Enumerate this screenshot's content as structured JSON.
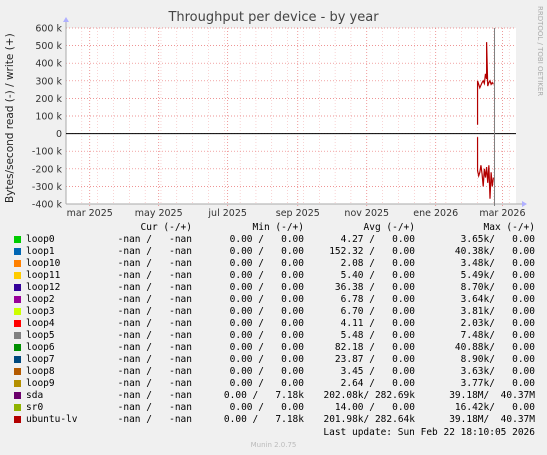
{
  "title": "Throughput per device - by year",
  "ylabel": "Bytes/second read (-) / write (+)",
  "watermark": "RRDTOOL / TOBI OETIKER",
  "footer": "Munin 2.0.75",
  "last_update": "Last update: Sun Feb 22 18:10:05 2026",
  "legend_headers": {
    "cur": "Cur (-/+)",
    "min": "Min (-/+)",
    "avg": "Avg (-/+)",
    "max": "Max (-/+)"
  },
  "legend": [
    {
      "name": "loop0",
      "color": "#00cc00",
      "cur": "-nan /   -nan",
      "min": "0.00 /   0.00",
      "avg": "4.27 /   0.00",
      "max": "3.65k/   0.00"
    },
    {
      "name": "loop1",
      "color": "#0066b3",
      "cur": "-nan /   -nan",
      "min": "0.00 /   0.00",
      "avg": "152.32 /   0.00",
      "max": "40.38k/   0.00"
    },
    {
      "name": "loop10",
      "color": "#ff8000",
      "cur": "-nan /   -nan",
      "min": "0.00 /   0.00",
      "avg": "2.08 /   0.00",
      "max": "3.48k/   0.00"
    },
    {
      "name": "loop11",
      "color": "#ffcc00",
      "cur": "-nan /   -nan",
      "min": "0.00 /   0.00",
      "avg": "5.40 /   0.00",
      "max": "5.49k/   0.00"
    },
    {
      "name": "loop12",
      "color": "#330099",
      "cur": "-nan /   -nan",
      "min": "0.00 /   0.00",
      "avg": "36.38 /   0.00",
      "max": "8.70k/   0.00"
    },
    {
      "name": "loop2",
      "color": "#990099",
      "cur": "-nan /   -nan",
      "min": "0.00 /   0.00",
      "avg": "6.78 /   0.00",
      "max": "3.64k/   0.00"
    },
    {
      "name": "loop3",
      "color": "#ccff00",
      "cur": "-nan /   -nan",
      "min": "0.00 /   0.00",
      "avg": "6.70 /   0.00",
      "max": "3.81k/   0.00"
    },
    {
      "name": "loop4",
      "color": "#ff0000",
      "cur": "-nan /   -nan",
      "min": "0.00 /   0.00",
      "avg": "4.11 /   0.00",
      "max": "2.03k/   0.00"
    },
    {
      "name": "loop5",
      "color": "#808080",
      "cur": "-nan /   -nan",
      "min": "0.00 /   0.00",
      "avg": "5.48 /   0.00",
      "max": "7.48k/   0.00"
    },
    {
      "name": "loop6",
      "color": "#008f00",
      "cur": "-nan /   -nan",
      "min": "0.00 /   0.00",
      "avg": "82.18 /   0.00",
      "max": "40.88k/   0.00"
    },
    {
      "name": "loop7",
      "color": "#00487d",
      "cur": "-nan /   -nan",
      "min": "0.00 /   0.00",
      "avg": "23.87 /   0.00",
      "max": "8.90k/   0.00"
    },
    {
      "name": "loop8",
      "color": "#b35a00",
      "cur": "-nan /   -nan",
      "min": "0.00 /   0.00",
      "avg": "3.45 /   0.00",
      "max": "3.63k/   0.00"
    },
    {
      "name": "loop9",
      "color": "#b38f00",
      "cur": "-nan /   -nan",
      "min": "0.00 /   0.00",
      "avg": "2.64 /   0.00",
      "max": "3.77k/   0.00"
    },
    {
      "name": "sda",
      "color": "#6b006b",
      "cur": "-nan /   -nan",
      "min": "0.00 /   7.18k",
      "avg": "202.08k/ 282.69k",
      "max": "39.18M/  40.37M"
    },
    {
      "name": "sr0",
      "color": "#8fb300",
      "cur": "-nan /   -nan",
      "min": "0.00 /   0.00",
      "avg": "14.00 /   0.00",
      "max": "16.42k/   0.00"
    },
    {
      "name": "ubuntu-lv",
      "color": "#b30000",
      "cur": "-nan /   -nan",
      "min": "0.00 /   7.18k",
      "avg": "201.98k/ 282.64k",
      "max": "39.18M/  40.37M"
    }
  ],
  "chart_data": {
    "type": "line",
    "title": "Throughput per device - by year",
    "ylabel": "Bytes/second read (-) / write (+)",
    "xlabel": "",
    "ylim": [
      -400000,
      600000
    ],
    "yticks": [
      {
        "value": 600000,
        "label": "600 k"
      },
      {
        "value": 500000,
        "label": "500 k"
      },
      {
        "value": 400000,
        "label": "400 k"
      },
      {
        "value": 300000,
        "label": "300 k"
      },
      {
        "value": 200000,
        "label": "200 k"
      },
      {
        "value": 100000,
        "label": "100 k"
      },
      {
        "value": 0,
        "label": "0"
      },
      {
        "value": -100000,
        "label": "-100 k"
      },
      {
        "value": -200000,
        "label": "-200 k"
      },
      {
        "value": -300000,
        "label": "-300 k"
      },
      {
        "value": -400000,
        "label": "-400 k"
      }
    ],
    "xlim": [
      "2025-02-08",
      "2026-03-13"
    ],
    "xticks": [
      {
        "date": "2025-03-01",
        "label": "mar 2025"
      },
      {
        "date": "2025-05-01",
        "label": "may 2025"
      },
      {
        "date": "2025-07-01",
        "label": "jul 2025"
      },
      {
        "date": "2025-09-01",
        "label": "sep 2025"
      },
      {
        "date": "2025-11-01",
        "label": "nov 2025"
      },
      {
        "date": "2026-01-01",
        "label": "ene 2026"
      },
      {
        "date": "2026-03-01",
        "label": "mar 2026"
      }
    ],
    "now_marker": "2026-02-22",
    "grid": true,
    "colors": {
      "grid": "#e87070",
      "zero_line": "#000000",
      "now_line": "#7f7f7f",
      "axis": "#aaaaaa"
    },
    "series": [
      {
        "name": "ubuntu-lv",
        "color": "#b30000",
        "write": [
          [
            "2026-02-07",
            50000
          ],
          [
            "2026-02-07",
            300000
          ],
          [
            "2026-02-08",
            280000
          ],
          [
            "2026-02-09",
            260000
          ],
          [
            "2026-02-10",
            275000
          ],
          [
            "2026-02-11",
            290000
          ],
          [
            "2026-02-12",
            300000
          ],
          [
            "2026-02-13",
            285000
          ],
          [
            "2026-02-14",
            340000
          ],
          [
            "2026-02-15",
            310000
          ],
          [
            "2026-02-15",
            520000
          ],
          [
            "2026-02-16",
            270000
          ],
          [
            "2026-02-17",
            290000
          ],
          [
            "2026-02-18",
            300000
          ],
          [
            "2026-02-19",
            280000
          ],
          [
            "2026-02-20",
            290000
          ],
          [
            "2026-02-21",
            280000
          ]
        ],
        "read": [
          [
            "2026-02-07",
            -20000
          ],
          [
            "2026-02-07",
            -210000
          ],
          [
            "2026-02-08",
            -240000
          ],
          [
            "2026-02-09",
            -220000
          ],
          [
            "2026-02-10",
            -180000
          ],
          [
            "2026-02-11",
            -230000
          ],
          [
            "2026-02-12",
            -300000
          ],
          [
            "2026-02-13",
            -200000
          ],
          [
            "2026-02-14",
            -250000
          ],
          [
            "2026-02-15",
            -190000
          ],
          [
            "2026-02-16",
            -280000
          ],
          [
            "2026-02-17",
            -180000
          ],
          [
            "2026-02-18",
            -370000
          ],
          [
            "2026-02-19",
            -220000
          ],
          [
            "2026-02-20",
            -300000
          ],
          [
            "2026-02-21",
            -250000
          ]
        ]
      }
    ]
  }
}
